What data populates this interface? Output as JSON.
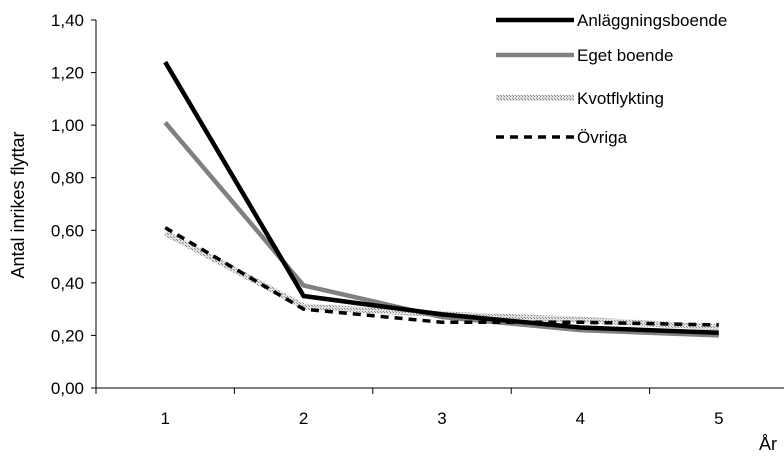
{
  "chart_data": {
    "type": "line",
    "ylabel": "Antal inrikes flyttar",
    "xlabel": "År",
    "x": [
      1,
      2,
      3,
      4,
      5
    ],
    "x_tick_labels": [
      "1",
      "2",
      "3",
      "4",
      "5"
    ],
    "ylim": [
      0,
      1.4
    ],
    "y_ticks": [
      0,
      0.2,
      0.4,
      0.6,
      0.8,
      1.0,
      1.2,
      1.4
    ],
    "y_tick_labels": [
      "0,00",
      "0,20",
      "0,40",
      "0,60",
      "0,80",
      "1,00",
      "1,20",
      "1,40"
    ],
    "grid": false,
    "legend_position": "top-right",
    "series": [
      {
        "name": "Anläggningsboende",
        "values": [
          1.24,
          0.35,
          0.28,
          0.23,
          0.21
        ],
        "color": "#000000",
        "style": "solid-thick"
      },
      {
        "name": "Eget boende",
        "values": [
          1.01,
          0.39,
          0.27,
          0.22,
          0.2
        ],
        "color": "#808080",
        "style": "solid"
      },
      {
        "name": "Kvotflykting",
        "values": [
          0.59,
          0.31,
          0.28,
          0.26,
          0.23
        ],
        "color": "#b0b0b0",
        "style": "hatched"
      },
      {
        "name": "Övriga",
        "values": [
          0.61,
          0.3,
          0.25,
          0.25,
          0.24
        ],
        "color": "#000000",
        "style": "dashed"
      }
    ]
  }
}
